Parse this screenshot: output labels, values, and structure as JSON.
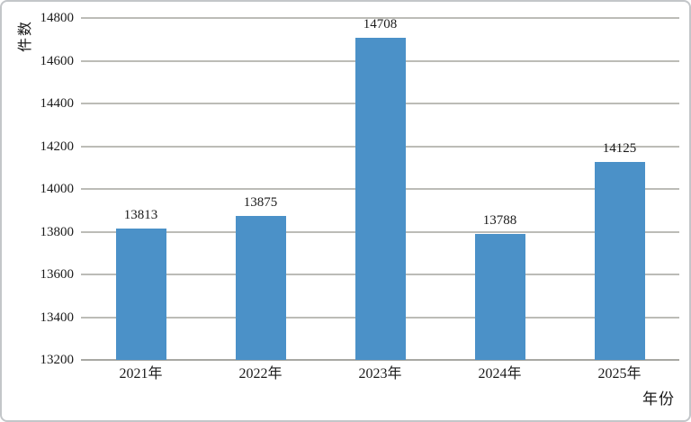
{
  "chart_data": {
    "type": "bar",
    "title": "",
    "categories": [
      "2021年",
      "2022年",
      "2023年",
      "2024年",
      "2025年"
    ],
    "values": [
      13813,
      13875,
      14708,
      13788,
      14125
    ],
    "xlabel": "年份",
    "ylabel": "件数",
    "ylim": [
      13200,
      14800
    ],
    "ytick_step": 200,
    "ytick_labels": [
      "13200",
      "13400",
      "13600",
      "13800",
      "14000",
      "14200",
      "14400",
      "14600",
      "14800"
    ],
    "data_labels": [
      "13813",
      "13875",
      "14708",
      "13788",
      "14125"
    ],
    "grid": true,
    "legend_position": "none",
    "bar_color": "#4b91c8",
    "gridline_color": "#bcbcb7",
    "baseline_color": "#a8a8a3",
    "text_color": "#1a1a1a"
  }
}
